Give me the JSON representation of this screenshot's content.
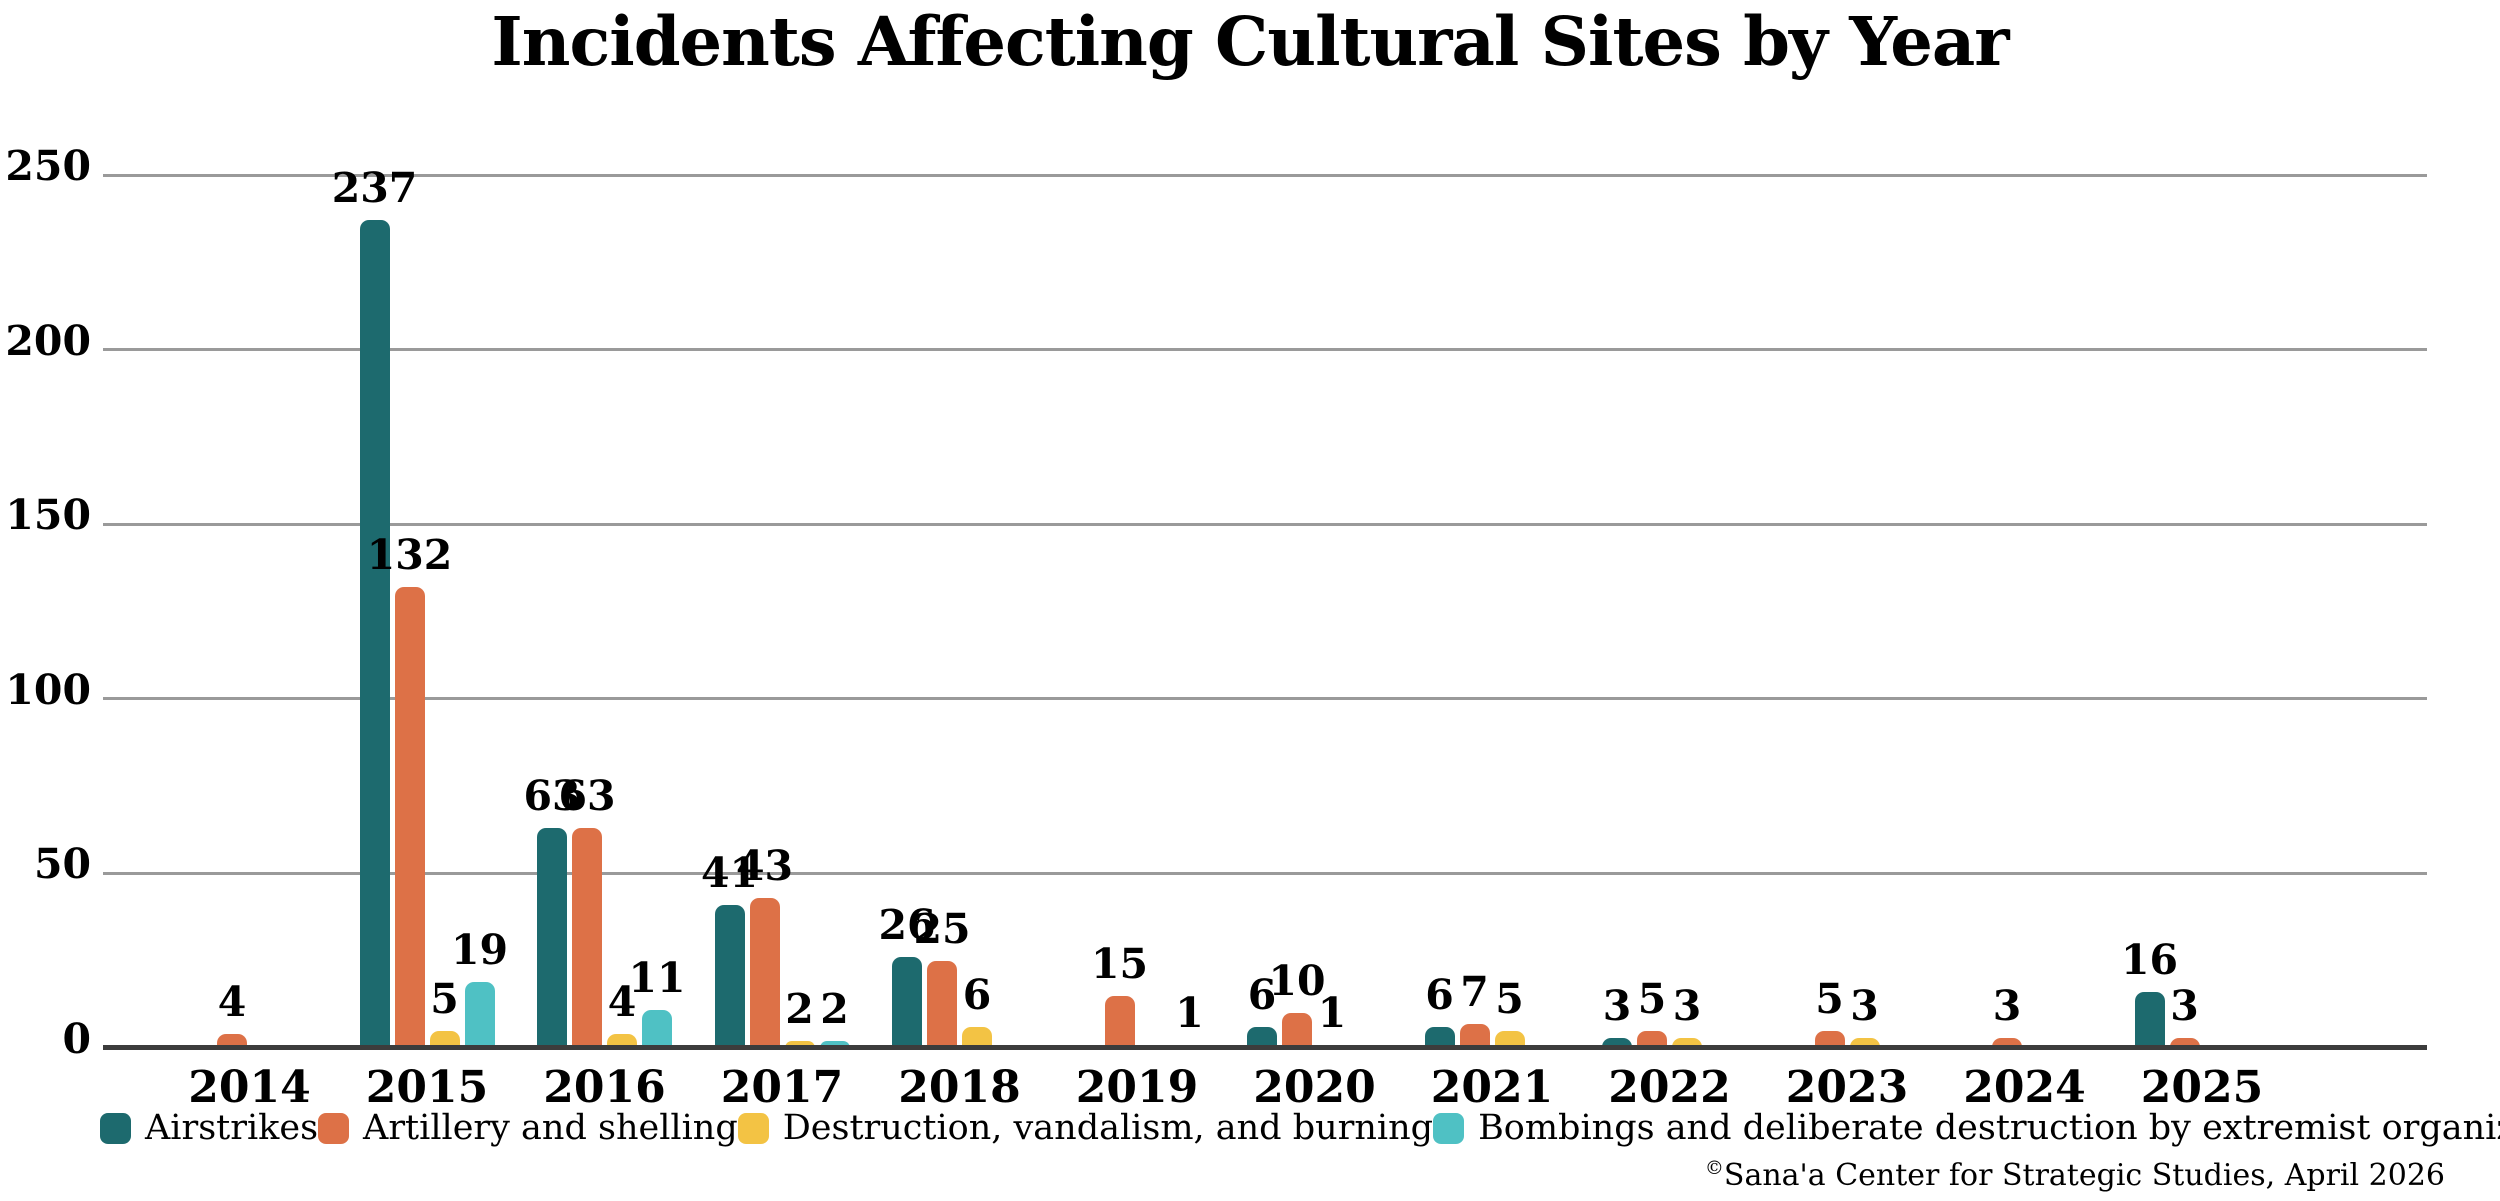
{
  "title": "Incidents Affecting Cultural Sites by Year",
  "attribution": {
    "copyright": "©",
    "text": "Sana'a Center for Strategic Studies, April 2026"
  },
  "colors": {
    "airstrikes": "#1d6a6e",
    "artillery": "#dd7147",
    "destruction": "#f3c344",
    "bombings": "#4fc1c4",
    "gridline": "#9a9a9a",
    "axis_line": "#3c3c3c"
  },
  "chart_data": {
    "type": "bar",
    "title": "Incidents Affecting Cultural Sites by Year",
    "categories": [
      "2014",
      "2015",
      "2016",
      "2017",
      "2018",
      "2019",
      "2020",
      "2021",
      "2022",
      "2023",
      "2024",
      "2025"
    ],
    "series": [
      {
        "name": "Airstrikes",
        "key": "airstrikes",
        "color": "#1d6a6e",
        "values": [
          null,
          237,
          63,
          41,
          26,
          null,
          6,
          6,
          3,
          null,
          null,
          16
        ]
      },
      {
        "name": "Artillery and shelling",
        "key": "artillery-and-shelling",
        "color": "#dd7147",
        "values": [
          4,
          132,
          63,
          43,
          25,
          15,
          10,
          7,
          5,
          5,
          3,
          3
        ]
      },
      {
        "name": "Destruction, vandalism, and burning",
        "key": "destruction-vandalism-and-burning",
        "color": "#f3c344",
        "values": [
          null,
          5,
          4,
          2,
          6,
          null,
          1,
          5,
          3,
          3,
          null,
          null
        ]
      },
      {
        "name": "Bombings and deliberate destruction by extremist organizations",
        "key": "bombings-and-deliberate-destruction-by-extremist-organizations",
        "color": "#4fc1c4",
        "values": [
          null,
          19,
          11,
          2,
          null,
          1,
          null,
          null,
          null,
          null,
          null,
          null
        ]
      }
    ],
    "xlabel": "",
    "ylabel": "",
    "ylim": [
      0,
      250
    ],
    "yticks": [
      0,
      50,
      100,
      150,
      200,
      250
    ],
    "grid": true,
    "legend_position": "bottom"
  }
}
